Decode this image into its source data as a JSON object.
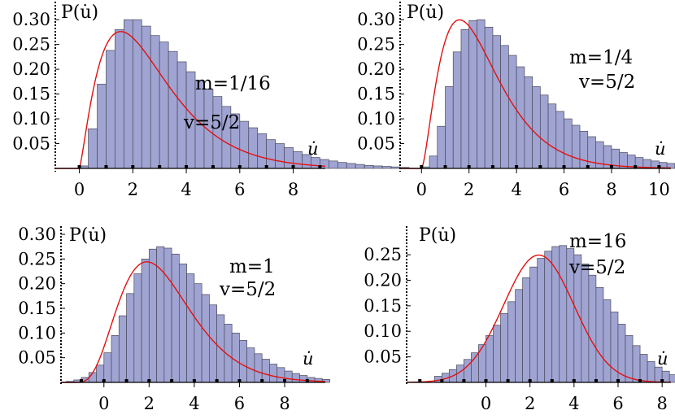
{
  "chart_data": [
    {
      "type": "bar",
      "ylabel": "P(u̇)",
      "xlabel": "u̇",
      "annotations": [
        "m=1/16",
        "v=5/2"
      ],
      "xlim": [
        -0.9,
        9.2
      ],
      "ylim": [
        0,
        0.32
      ],
      "xticks": [
        0,
        2,
        4,
        6,
        8
      ],
      "yticks": [
        0.05,
        0.1,
        0.15,
        0.2,
        0.25,
        0.3
      ],
      "ytick_labels": [
        "0.05",
        "0.10",
        "0.15",
        "0.20",
        "0.25",
        "0.30"
      ],
      "bin_start": 0,
      "bin_width": 0.3333,
      "values": [
        0.005,
        0.08,
        0.17,
        0.238,
        0.28,
        0.3,
        0.3,
        0.287,
        0.268,
        0.255,
        0.236,
        0.215,
        0.195,
        0.178,
        0.16,
        0.145,
        0.125,
        0.11,
        0.095,
        0.082,
        0.07,
        0.058,
        0.05,
        0.042,
        0.034,
        0.028,
        0.022,
        0.018,
        0.015,
        0.012,
        0.01,
        0.008,
        0.006,
        0.005,
        0.004,
        0.003,
        0.002
      ],
      "fit_curve": {
        "type": "gamma",
        "shape": 2.3,
        "scale": 1.19,
        "shift": 0
      }
    },
    {
      "type": "bar",
      "ylabel": "P(u̇)",
      "xlabel": "u̇",
      "annotations": [
        "m=1/4",
        "v=5/2"
      ],
      "xlim": [
        -0.9,
        10.5
      ],
      "ylim": [
        0,
        0.32
      ],
      "xticks": [
        0,
        2,
        4,
        6,
        8,
        10
      ],
      "yticks": [
        0.05,
        0.1,
        0.15,
        0.2,
        0.25,
        0.3
      ],
      "ytick_labels": [
        "0.05",
        "0.10",
        "0.15",
        "0.20",
        "0.25",
        "0.30"
      ],
      "bin_start": 0,
      "bin_width": 0.3333,
      "values": [
        0.003,
        0.025,
        0.085,
        0.165,
        0.235,
        0.28,
        0.298,
        0.3,
        0.285,
        0.268,
        0.248,
        0.228,
        0.205,
        0.185,
        0.165,
        0.148,
        0.13,
        0.115,
        0.1,
        0.087,
        0.075,
        0.064,
        0.054,
        0.046,
        0.039,
        0.032,
        0.027,
        0.022,
        0.018,
        0.015,
        0.012,
        0.01,
        0.008,
        0.006,
        0.005,
        0.004,
        0.003,
        0.002,
        0.002,
        0.001
      ],
      "fit_curve": {
        "type": "gamma",
        "shape": 2.6,
        "scale": 1.0,
        "shift": 0
      }
    },
    {
      "type": "bar",
      "ylabel": "P(u̇)",
      "xlabel": "u̇",
      "annotations": [
        "m=1",
        "v=5/2"
      ],
      "xlim": [
        -1.9,
        9.8
      ],
      "ylim": [
        0,
        0.3
      ],
      "xticks": [
        0,
        2,
        4,
        6,
        8
      ],
      "yticks": [
        0.05,
        0.1,
        0.15,
        0.2,
        0.25,
        0.3
      ],
      "ytick_labels": [
        "0.05",
        "0.10",
        "0.15",
        "0.20",
        "0.25",
        "0.30"
      ],
      "bin_start": -1.6667,
      "bin_width": 0.3333,
      "values": [
        0.002,
        0.005,
        0.01,
        0.02,
        0.035,
        0.06,
        0.095,
        0.135,
        0.18,
        0.22,
        0.25,
        0.27,
        0.275,
        0.272,
        0.26,
        0.24,
        0.22,
        0.2,
        0.178,
        0.157,
        0.137,
        0.118,
        0.1,
        0.085,
        0.07,
        0.058,
        0.047,
        0.037,
        0.03,
        0.023,
        0.018,
        0.014,
        0.01,
        0.008,
        0.006
      ],
      "fit_curve": {
        "type": "gamma",
        "shape": 5.0,
        "scale": 0.8,
        "shift": -1.3
      }
    },
    {
      "type": "bar",
      "ylabel": "P(u̇)",
      "xlabel": "u̇",
      "annotations": [
        "m=16",
        "v=5/2"
      ],
      "xlim": [
        -3.6,
        8.4
      ],
      "ylim": [
        0,
        0.29
      ],
      "xticks": [
        0,
        2,
        4,
        6,
        8
      ],
      "yticks": [
        0.05,
        0.1,
        0.15,
        0.2,
        0.25
      ],
      "ytick_labels": [
        "0.05",
        "0.10",
        "0.15",
        "0.20",
        "0.25"
      ],
      "bin_start": -2.3333,
      "bin_width": 0.3333,
      "values": [
        0.012,
        0.018,
        0.025,
        0.034,
        0.045,
        0.058,
        0.074,
        0.092,
        0.112,
        0.135,
        0.158,
        0.182,
        0.205,
        0.226,
        0.243,
        0.257,
        0.266,
        0.268,
        0.262,
        0.25,
        0.232,
        0.21,
        0.186,
        0.162,
        0.138,
        0.114,
        0.092,
        0.072,
        0.055,
        0.041,
        0.03,
        0.022,
        0.015,
        0.01
      ],
      "fit_curve": {
        "type": "normal",
        "mean": 2.4,
        "sd": 1.6
      }
    }
  ],
  "colors": {
    "bar_fill": "#a0a4d2",
    "bar_stroke": "#4a4a5a",
    "curve": "#e41010",
    "axis": "#000000"
  }
}
